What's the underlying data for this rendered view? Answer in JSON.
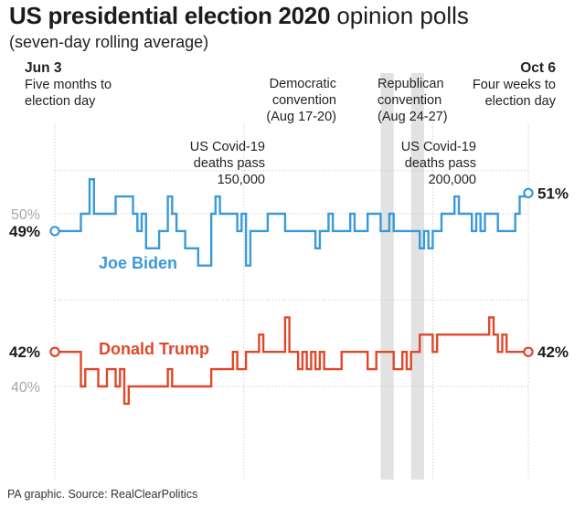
{
  "header": {
    "title_bold": "US presidential election 2020",
    "title_rest": " opinion polls",
    "subtitle": "(seven-day rolling average)"
  },
  "annotations": {
    "start_date": "Jun 3",
    "start_line1": "Five months to",
    "start_line2": "election day",
    "end_date": "Oct 6",
    "end_line1": "Four weeks to",
    "end_line2": "election day",
    "dem_line1": "Democratic",
    "dem_line2": "convention",
    "dem_line3": "(Aug 17-20)",
    "rep_line1": "Republican",
    "rep_line2": "convention",
    "rep_line3": "(Aug 24-27)",
    "covid1_line1": "US Covid-19",
    "covid1_line2": "deaths pass",
    "covid1_line3": "150,000",
    "covid2_line1": "US Covid-19",
    "covid2_line2": "deaths pass",
    "covid2_line3": "200,000"
  },
  "footer": {
    "source": "PA graphic. Source: RealClearPolitics"
  },
  "colors": {
    "biden": "#3a9ad9",
    "trump": "#e0482b",
    "grid": "#c8c8c8",
    "convention": "#e2e2e2",
    "axis_text": "#a8a8a8"
  },
  "chart_data": {
    "type": "line",
    "title": "US presidential election 2020 opinion polls",
    "subtitle": "(seven-day rolling average)",
    "x_start": "Jun 3",
    "x_end": "Oct 6",
    "ylim": [
      36.5,
      53.5
    ],
    "y_ticks": [
      {
        "value": 50,
        "label": "50%"
      },
      {
        "value": 40,
        "label": "40%"
      }
    ],
    "shaded_ranges": [
      {
        "label": "Democratic convention",
        "start": 75,
        "end": 78
      },
      {
        "label": "Republican convention",
        "start": 82,
        "end": 85
      }
    ],
    "series": [
      {
        "name": "Joe Biden",
        "start_label": "49%",
        "end_label": "51%",
        "points": [
          [
            0,
            49
          ],
          [
            6,
            49
          ],
          [
            6,
            50
          ],
          [
            8,
            50
          ],
          [
            8,
            52
          ],
          [
            9,
            52
          ],
          [
            9,
            50
          ],
          [
            14,
            50
          ],
          [
            14,
            51
          ],
          [
            18,
            51
          ],
          [
            18,
            50
          ],
          [
            19,
            50
          ],
          [
            19,
            49
          ],
          [
            20,
            49
          ],
          [
            20,
            50
          ],
          [
            21,
            50
          ],
          [
            21,
            48
          ],
          [
            24,
            48
          ],
          [
            24,
            49
          ],
          [
            26,
            49
          ],
          [
            26,
            51
          ],
          [
            27,
            51
          ],
          [
            27,
            50
          ],
          [
            28,
            50
          ],
          [
            28,
            49
          ],
          [
            30,
            49
          ],
          [
            30,
            48
          ],
          [
            33,
            48
          ],
          [
            33,
            47
          ],
          [
            36,
            47
          ],
          [
            36,
            50
          ],
          [
            37,
            50
          ],
          [
            37,
            51
          ],
          [
            38,
            51
          ],
          [
            38,
            50
          ],
          [
            42,
            50
          ],
          [
            42,
            49
          ],
          [
            43,
            49
          ],
          [
            43,
            50
          ],
          [
            44,
            50
          ],
          [
            44,
            47
          ],
          [
            45,
            47
          ],
          [
            45,
            49
          ],
          [
            49,
            49
          ],
          [
            49,
            50
          ],
          [
            53,
            50
          ],
          [
            53,
            49
          ],
          [
            60,
            49
          ],
          [
            60,
            48
          ],
          [
            61,
            48
          ],
          [
            61,
            49
          ],
          [
            63,
            49
          ],
          [
            63,
            50
          ],
          [
            64,
            50
          ],
          [
            64,
            49
          ],
          [
            68,
            49
          ],
          [
            68,
            50
          ],
          [
            69,
            50
          ],
          [
            69,
            49
          ],
          [
            72,
            49
          ],
          [
            72,
            50
          ],
          [
            75,
            50
          ],
          [
            75,
            49
          ],
          [
            77,
            49
          ],
          [
            77,
            50
          ],
          [
            78,
            50
          ],
          [
            78,
            49
          ],
          [
            84,
            49
          ],
          [
            84,
            48
          ],
          [
            85,
            48
          ],
          [
            85,
            49
          ],
          [
            86,
            49
          ],
          [
            86,
            48
          ],
          [
            87,
            48
          ],
          [
            87,
            49
          ],
          [
            89,
            49
          ],
          [
            89,
            50
          ],
          [
            92,
            50
          ],
          [
            92,
            51
          ],
          [
            93,
            51
          ],
          [
            93,
            50
          ],
          [
            96,
            50
          ],
          [
            96,
            49
          ],
          [
            97,
            49
          ],
          [
            97,
            50
          ],
          [
            98,
            50
          ],
          [
            98,
            49
          ],
          [
            99,
            49
          ],
          [
            99,
            50
          ],
          [
            102,
            50
          ],
          [
            102,
            49
          ],
          [
            106,
            49
          ],
          [
            106,
            50
          ],
          [
            107,
            50
          ],
          [
            107,
            51
          ],
          [
            109,
            51
          ],
          [
            109,
            51.2
          ]
        ]
      },
      {
        "name": "Donald Trump",
        "start_label": "42%",
        "end_label": "42%",
        "points": [
          [
            0,
            42
          ],
          [
            6,
            42
          ],
          [
            6,
            40
          ],
          [
            7,
            40
          ],
          [
            7,
            41
          ],
          [
            10,
            41
          ],
          [
            10,
            40
          ],
          [
            12,
            40
          ],
          [
            12,
            41
          ],
          [
            14,
            41
          ],
          [
            14,
            40
          ],
          [
            15,
            40
          ],
          [
            15,
            41
          ],
          [
            16,
            41
          ],
          [
            16,
            39
          ],
          [
            17,
            39
          ],
          [
            17,
            40
          ],
          [
            19,
            40
          ],
          [
            19,
            40
          ],
          [
            26,
            40
          ],
          [
            26,
            41
          ],
          [
            27,
            41
          ],
          [
            27,
            40
          ],
          [
            36,
            40
          ],
          [
            36,
            41
          ],
          [
            41,
            41
          ],
          [
            41,
            42
          ],
          [
            42,
            42
          ],
          [
            42,
            41
          ],
          [
            44,
            41
          ],
          [
            44,
            42
          ],
          [
            47,
            42
          ],
          [
            47,
            43
          ],
          [
            48,
            43
          ],
          [
            48,
            42
          ],
          [
            53,
            42
          ],
          [
            53,
            44
          ],
          [
            54,
            44
          ],
          [
            54,
            42
          ],
          [
            56,
            42
          ],
          [
            56,
            41
          ],
          [
            57,
            41
          ],
          [
            57,
            42
          ],
          [
            58,
            42
          ],
          [
            58,
            41
          ],
          [
            59,
            41
          ],
          [
            59,
            42
          ],
          [
            60,
            42
          ],
          [
            60,
            41
          ],
          [
            61,
            41
          ],
          [
            61,
            42
          ],
          [
            62,
            42
          ],
          [
            62,
            41
          ],
          [
            66,
            41
          ],
          [
            66,
            42
          ],
          [
            72,
            42
          ],
          [
            72,
            41
          ],
          [
            74,
            41
          ],
          [
            74,
            42
          ],
          [
            78,
            42
          ],
          [
            78,
            41
          ],
          [
            80,
            41
          ],
          [
            80,
            42
          ],
          [
            81,
            42
          ],
          [
            81,
            41
          ],
          [
            82,
            41
          ],
          [
            82,
            42
          ],
          [
            84,
            42
          ],
          [
            84,
            43
          ],
          [
            87,
            43
          ],
          [
            87,
            42
          ],
          [
            88,
            42
          ],
          [
            88,
            43
          ],
          [
            100,
            43
          ],
          [
            100,
            44
          ],
          [
            101,
            44
          ],
          [
            101,
            43
          ],
          [
            102,
            43
          ],
          [
            102,
            42
          ],
          [
            103,
            42
          ],
          [
            103,
            43
          ],
          [
            104,
            43
          ],
          [
            104,
            42
          ],
          [
            109,
            42
          ]
        ]
      }
    ]
  }
}
